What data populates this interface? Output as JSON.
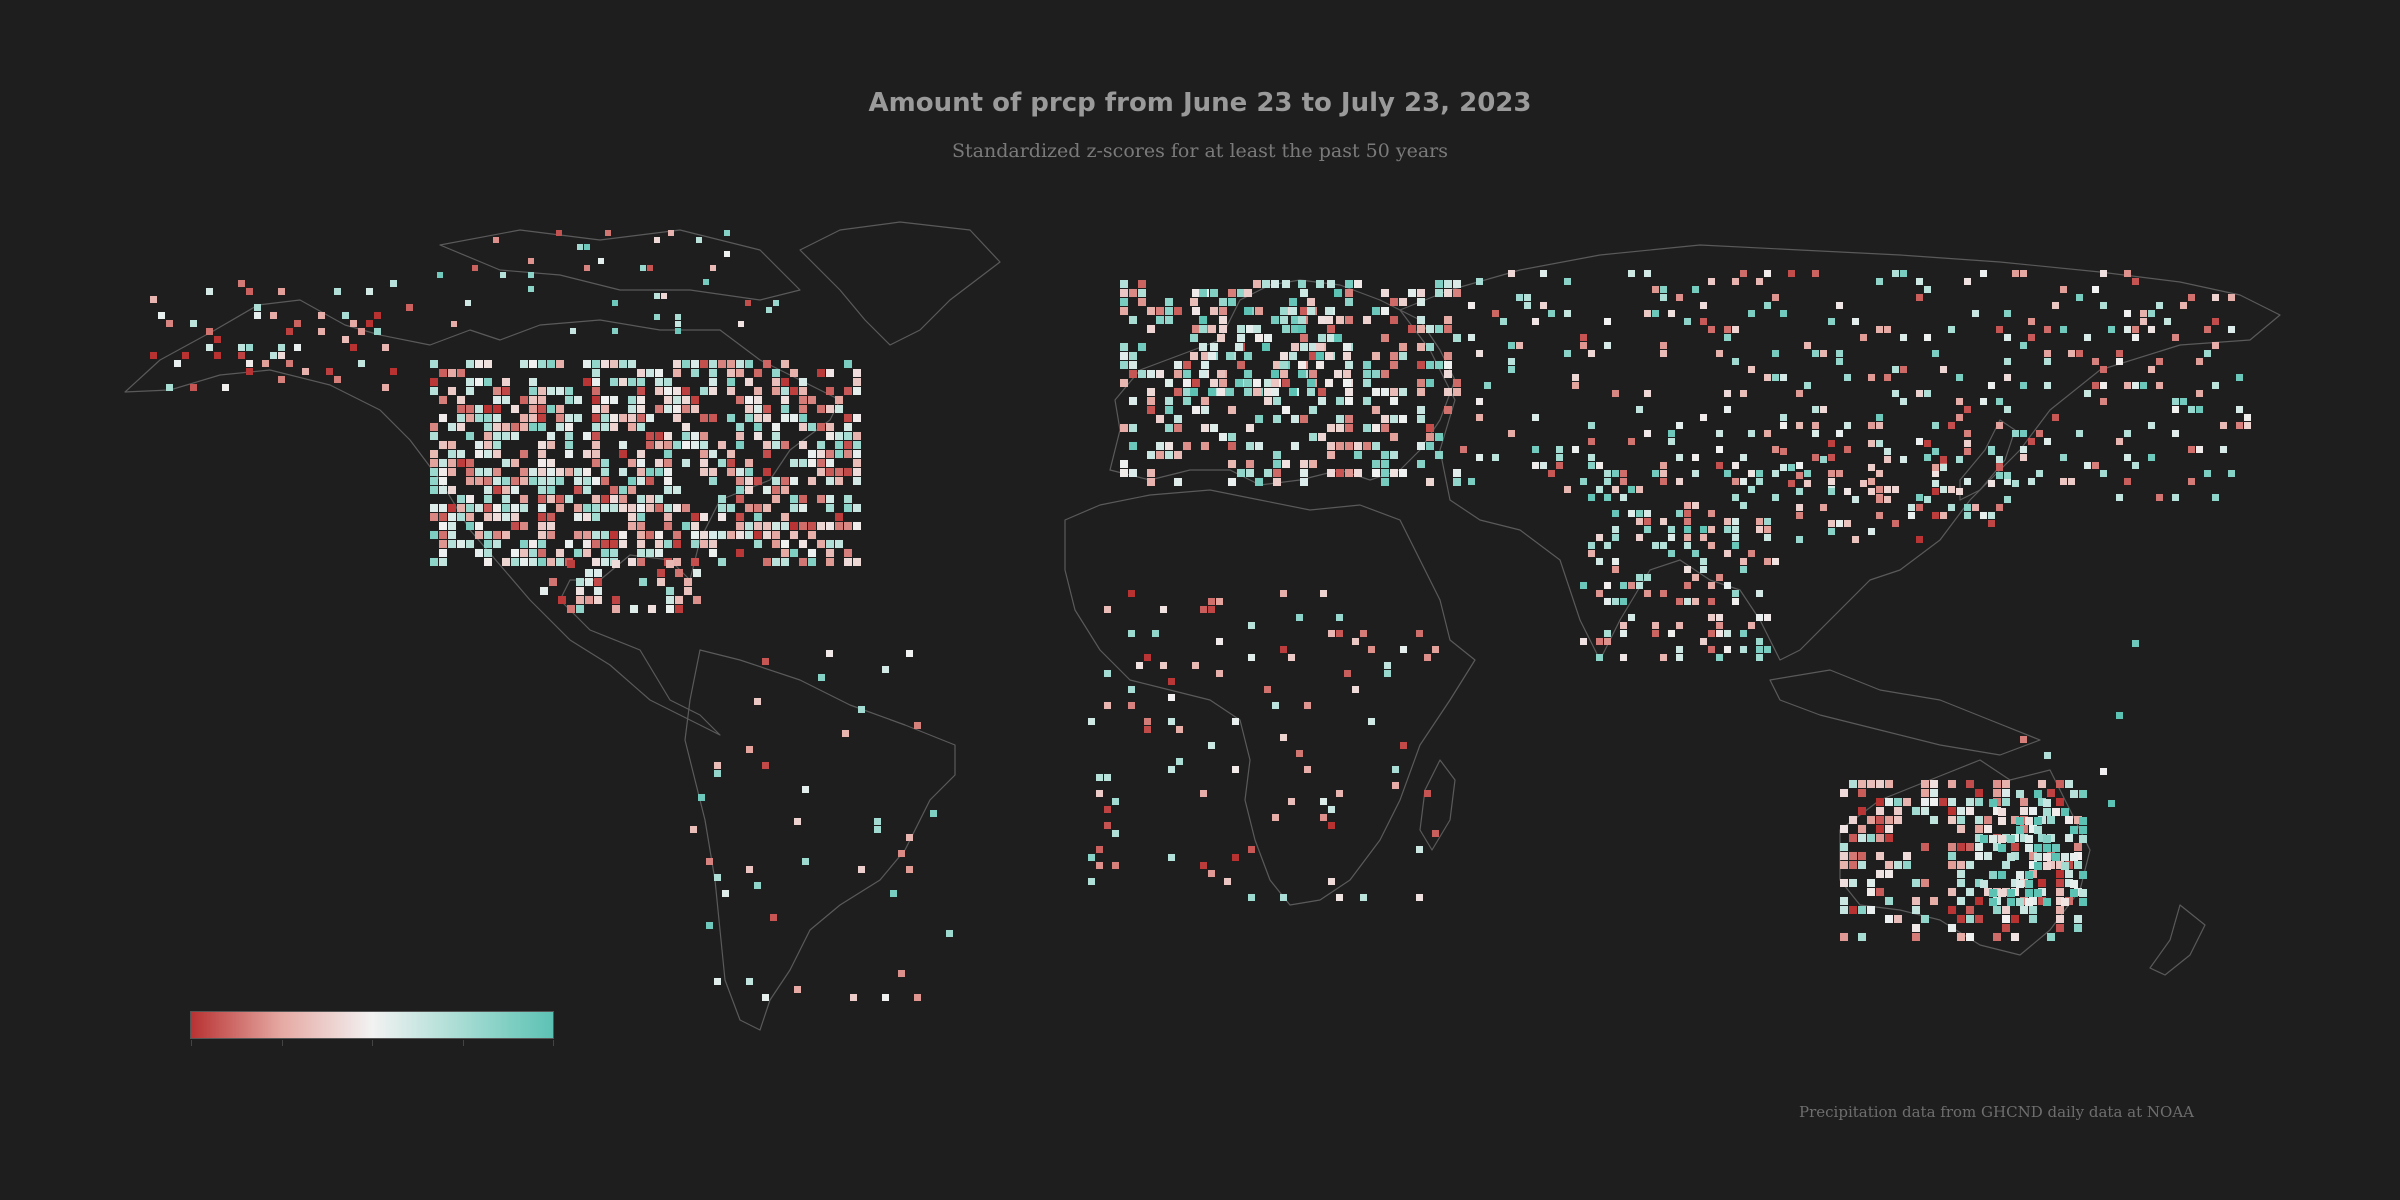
{
  "title": "Amount of prcp from June 23 to July 23, 2023",
  "subtitle": "Standardized z-scores for at least the past 50 years",
  "credit": "Precipitation data from GHCND daily data at NOAA",
  "colors": {
    "background": "#1e1e1e",
    "coastline": "#5a5a5a",
    "dry": "#b83232",
    "neutral": "#f2f2f2",
    "wet": "#5cc2b4"
  },
  "legend": {
    "colors": [
      "#b83232",
      "#e6a9a3",
      "#f2f2f2",
      "#a6dcd3",
      "#5cc2b4"
    ],
    "min": -2,
    "max": 2,
    "ticks": [
      -2,
      -1,
      0,
      1,
      2
    ]
  }
}
